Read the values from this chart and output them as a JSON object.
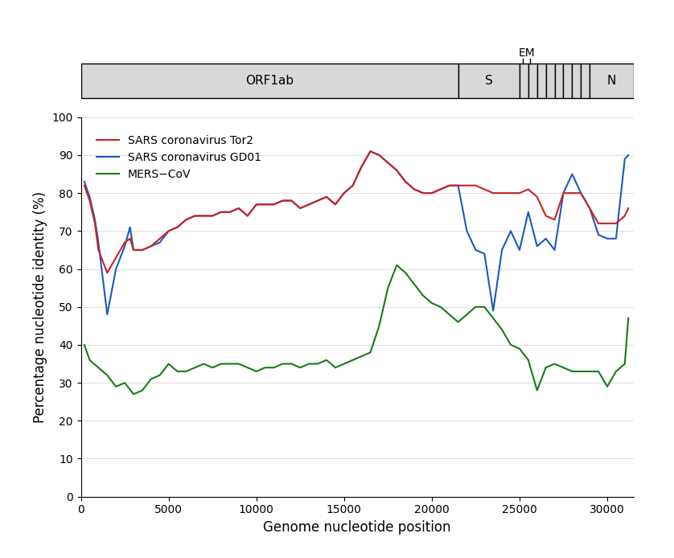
{
  "title": "",
  "xlabel": "Genome nucleotide position",
  "ylabel": "Percentage nucleotide identity (%)",
  "xlim": [
    0,
    31500
  ],
  "ylim": [
    0,
    100
  ],
  "yticks": [
    0,
    10,
    20,
    30,
    40,
    50,
    60,
    70,
    80,
    90,
    100
  ],
  "xticks": [
    0,
    5000,
    10000,
    15000,
    20000,
    25000,
    30000
  ],
  "legend": [
    {
      "label": "SARS coronavirus Tor2",
      "color": "#cc2222",
      "lw": 1.5
    },
    {
      "label": "SARS coronavirus GD01",
      "color": "#1a5abf",
      "lw": 1.5
    },
    {
      "label": "MERS−CoV",
      "color": "#1a7a1a",
      "lw": 1.5
    }
  ],
  "genome_bar": {
    "orf1ab": {
      "start": 0,
      "end": 21500,
      "label": "ORF1ab"
    },
    "s": {
      "start": 21500,
      "end": 25000,
      "label": "S"
    },
    "em_region": {
      "start": 25000,
      "end": 29000,
      "label": ""
    },
    "n": {
      "start": 29000,
      "end": 31500,
      "label": "N"
    },
    "em_tick1": 25200,
    "em_tick2": 25600,
    "em_label": "EM"
  },
  "sars_tor2": {
    "x": [
      200,
      500,
      800,
      1000,
      1500,
      2000,
      2500,
      2800,
      3000,
      3500,
      4000,
      4500,
      5000,
      5500,
      6000,
      6500,
      7000,
      7500,
      8000,
      8500,
      9000,
      9500,
      10000,
      10500,
      11000,
      11500,
      12000,
      12500,
      13000,
      13500,
      14000,
      14500,
      15000,
      15500,
      16000,
      16500,
      17000,
      17500,
      18000,
      18500,
      19000,
      19500,
      20000,
      20500,
      21000,
      21500,
      22000,
      22500,
      23000,
      23500,
      24000,
      24500,
      25000,
      25500,
      26000,
      26500,
      27000,
      27500,
      28000,
      28500,
      29000,
      29500,
      30000,
      30500,
      31000,
      31200
    ],
    "y": [
      82,
      78,
      72,
      65,
      59,
      63,
      67,
      68,
      65,
      65,
      66,
      68,
      70,
      71,
      73,
      74,
      74,
      74,
      75,
      75,
      76,
      74,
      77,
      77,
      77,
      78,
      78,
      76,
      77,
      78,
      79,
      77,
      80,
      82,
      87,
      91,
      90,
      88,
      86,
      83,
      81,
      80,
      80,
      81,
      82,
      82,
      82,
      82,
      81,
      80,
      80,
      80,
      80,
      81,
      79,
      74,
      73,
      80,
      80,
      80,
      76,
      72,
      72,
      72,
      74,
      76
    ],
    "color": "#cc2222",
    "lw": 1.5
  },
  "sars_gd01": {
    "x": [
      200,
      500,
      800,
      1000,
      1500,
      2000,
      2500,
      2800,
      3000,
      3500,
      4000,
      4500,
      5000,
      5500,
      6000,
      6500,
      7000,
      7500,
      8000,
      8500,
      9000,
      9500,
      10000,
      10500,
      11000,
      11500,
      12000,
      12500,
      13000,
      13500,
      14000,
      14500,
      15000,
      15500,
      16000,
      16500,
      17000,
      17500,
      18000,
      18500,
      19000,
      19500,
      20000,
      20500,
      21000,
      21500,
      22000,
      22500,
      23000,
      23500,
      24000,
      24500,
      25000,
      25500,
      26000,
      26500,
      27000,
      27500,
      28000,
      28500,
      29000,
      29500,
      30000,
      30500,
      31000,
      31200
    ],
    "y": [
      83,
      79,
      73,
      67,
      48,
      60,
      66,
      71,
      65,
      65,
      66,
      67,
      70,
      71,
      73,
      74,
      74,
      74,
      75,
      75,
      76,
      74,
      77,
      77,
      77,
      78,
      78,
      76,
      77,
      78,
      79,
      77,
      80,
      82,
      87,
      91,
      90,
      88,
      86,
      83,
      81,
      80,
      80,
      81,
      82,
      82,
      70,
      65,
      64,
      49,
      65,
      70,
      65,
      75,
      66,
      68,
      65,
      80,
      85,
      80,
      76,
      69,
      68,
      68,
      89,
      90
    ],
    "color": "#1a5abf",
    "lw": 1.5
  },
  "mers": {
    "x": [
      200,
      500,
      1000,
      1500,
      2000,
      2500,
      3000,
      3500,
      4000,
      4500,
      5000,
      5500,
      6000,
      6500,
      7000,
      7500,
      8000,
      8500,
      9000,
      9500,
      10000,
      10500,
      11000,
      11500,
      12000,
      12500,
      13000,
      13500,
      14000,
      14500,
      15000,
      15500,
      16000,
      16500,
      17000,
      17500,
      18000,
      18500,
      19000,
      19500,
      20000,
      20500,
      21000,
      21500,
      22000,
      22500,
      23000,
      23500,
      24000,
      24500,
      25000,
      25500,
      26000,
      26500,
      27000,
      27500,
      28000,
      28500,
      29000,
      29500,
      30000,
      30500,
      31000,
      31200
    ],
    "y": [
      40,
      36,
      34,
      32,
      29,
      30,
      27,
      28,
      31,
      32,
      35,
      33,
      33,
      34,
      35,
      34,
      35,
      35,
      35,
      34,
      33,
      34,
      34,
      35,
      35,
      34,
      35,
      35,
      36,
      34,
      35,
      36,
      37,
      38,
      45,
      55,
      61,
      59,
      56,
      53,
      51,
      50,
      48,
      46,
      48,
      50,
      50,
      47,
      44,
      40,
      39,
      36,
      28,
      34,
      35,
      34,
      33,
      33,
      33,
      33,
      29,
      33,
      35,
      47
    ],
    "color": "#1a7a1a",
    "lw": 1.5
  }
}
